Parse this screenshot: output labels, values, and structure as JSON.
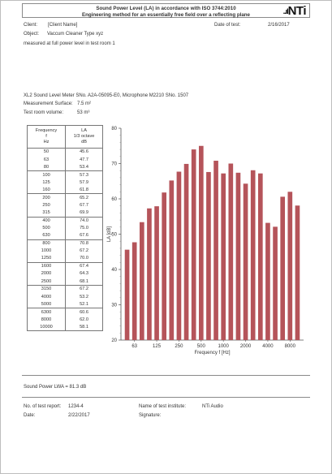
{
  "header": {
    "title_line1": "Sound Power Level (LA) in accordance with ISO 3744:2010",
    "title_line2": "Engineering method for an essentially free field over a reflecting plane",
    "logo_text": "NTi",
    "logo_bars": "..ıl"
  },
  "client": {
    "label": "Client:",
    "value": "[Client Name]"
  },
  "date_of_test": {
    "label": "Date of test:",
    "value": "2/16/2017"
  },
  "object": {
    "label": "Object:",
    "value": "Vaccum Cleaner Type xyz"
  },
  "note": "measured at full power level in test room 1",
  "meter": "XL2 Sound Level Meter SNo. A2A-05095-E0, Microphone M2210 SNo. 1507",
  "surface": {
    "label": "Measurement Surface:",
    "value": "7.5 m²"
  },
  "room": {
    "label": "Test room volume:",
    "value": "53 m³"
  },
  "table": {
    "col1_header": [
      "Frequency",
      "f",
      "Hz"
    ],
    "col2_header": [
      "LA",
      "1/3 octave",
      "dB"
    ],
    "rows": [
      [
        "50",
        "45.6"
      ],
      [
        "63",
        "47.7"
      ],
      [
        "80",
        "53.4"
      ],
      [
        "100",
        "57.3"
      ],
      [
        "125",
        "57.9"
      ],
      [
        "160",
        "61.8"
      ],
      [
        "200",
        "65.2"
      ],
      [
        "250",
        "67.7"
      ],
      [
        "315",
        "69.9"
      ],
      [
        "400",
        "74.0"
      ],
      [
        "500",
        "75.0"
      ],
      [
        "630",
        "67.6"
      ],
      [
        "800",
        "70.8"
      ],
      [
        "1000",
        "67.2"
      ],
      [
        "1250",
        "70.0"
      ],
      [
        "1600",
        "67.4"
      ],
      [
        "2000",
        "64.3"
      ],
      [
        "2500",
        "68.1"
      ],
      [
        "3150",
        "67.2"
      ],
      [
        "4000",
        "53.2"
      ],
      [
        "5000",
        "52.1"
      ],
      [
        "6300",
        "60.6"
      ],
      [
        "8000",
        "62.0"
      ],
      [
        "10000",
        "58.1"
      ]
    ]
  },
  "chart_data": {
    "type": "bar",
    "categories": [
      "50",
      "63",
      "80",
      "100",
      "125",
      "160",
      "200",
      "250",
      "315",
      "400",
      "500",
      "630",
      "800",
      "1000",
      "1250",
      "1600",
      "2000",
      "2500",
      "3150",
      "4000",
      "5000",
      "6300",
      "8000",
      "10000"
    ],
    "values": [
      45.6,
      47.7,
      53.4,
      57.3,
      57.9,
      61.8,
      65.2,
      67.7,
      69.9,
      74.0,
      75.0,
      67.6,
      70.8,
      67.2,
      70.0,
      67.4,
      64.3,
      68.1,
      67.2,
      53.2,
      52.1,
      60.6,
      62.0,
      58.1
    ],
    "xtick_labels": [
      "63",
      "125",
      "250",
      "500",
      "1000",
      "2000",
      "4000",
      "8000"
    ],
    "xtick_indices": [
      1,
      4,
      7,
      10,
      13,
      16,
      19,
      22
    ],
    "xlabel": "Frequency f [Hz]",
    "ylabel": "LA [dB]",
    "ylim": [
      20,
      80
    ],
    "yticks": [
      20,
      30,
      40,
      50,
      60,
      70,
      80
    ],
    "bar_color": "#b5545a",
    "grid": false
  },
  "sound_power": "Sound Power LWA = 81.3 dB",
  "footer": {
    "report_label": "No. of test report:",
    "report_value": "1234-4",
    "institute_label": "Name of test institute:",
    "institute_value": "NTi Audio",
    "date_label": "Date:",
    "date_value": "2/22/2017",
    "signature_label": "Signature:"
  }
}
